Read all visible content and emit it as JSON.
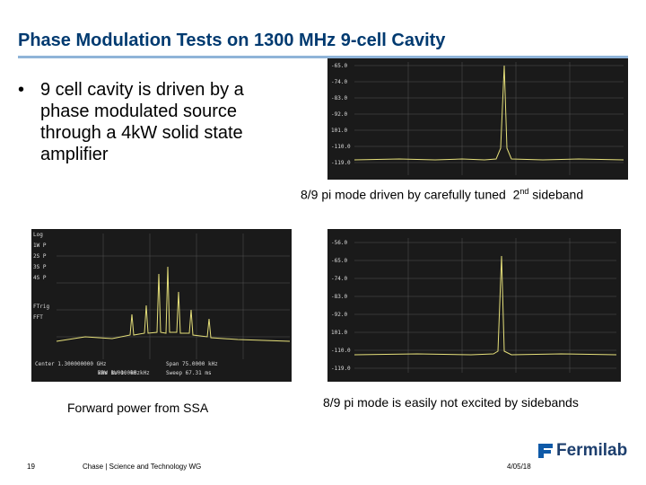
{
  "header": {
    "title": "Phase Modulation Tests on 1300 MHz 9-cell Cavity"
  },
  "bullets": [
    "9 cell cavity is driven by a phase modulated source through a 4kW solid state amplifier"
  ],
  "figures": [
    {
      "screen_labels": [
        "-65.0",
        "-74.0",
        "-83.0",
        "-92.0",
        "101.0",
        "-110.0",
        "-119.0"
      ],
      "caption": {
        "text": "8/9 pi mode driven by carefully tuned  2",
        "superscript": "nd",
        "rest": " sideband"
      }
    },
    {
      "screen_labels": [
        "Log",
        "1W P",
        "2S P",
        "3S P",
        "4S P",
        "FTrig",
        "FFT",
        "Center 1.300000000 GHz",
        "Res BW 1.000 kHz",
        "VBW 1.000 kHz",
        "Span 75.0000 kHz",
        "Sweep 67.31 ms"
      ],
      "caption": {
        "text": "Forward power from SSA"
      }
    },
    {
      "screen_labels": [
        "-56.0",
        "-65.0",
        "-74.0",
        "-83.0",
        "-92.0",
        "101.0",
        "-110.0",
        "-119.0"
      ],
      "caption": {
        "text": "8/9 pi mode is easily not excited by sidebands"
      }
    }
  ],
  "footer": {
    "page": "19",
    "presenter": "Chase | Science and Technology WG",
    "date": "4/05/18",
    "logo": "Fermilab"
  }
}
